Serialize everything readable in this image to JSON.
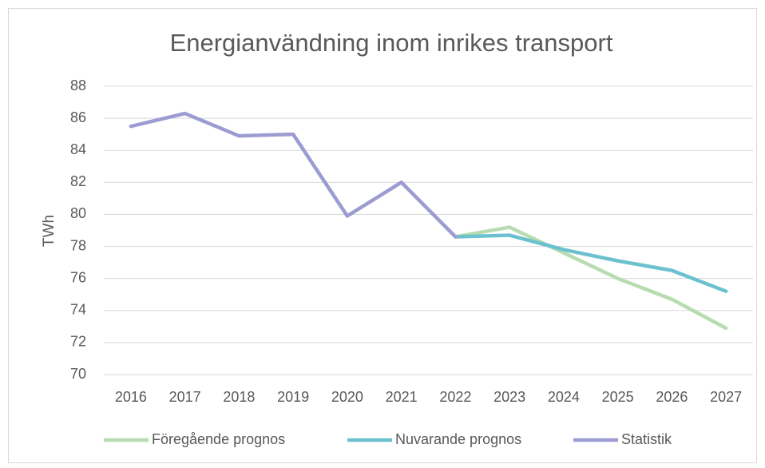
{
  "chart_data": {
    "type": "line",
    "title": "Energianvändning inom inrikes transport",
    "y_label": "TWh",
    "categories": [
      "2016",
      "2017",
      "2018",
      "2019",
      "2020",
      "2021",
      "2022",
      "2023",
      "2024",
      "2025",
      "2026",
      "2027"
    ],
    "series": [
      {
        "name": "Föregående prognos",
        "color": "#b6dcb0",
        "values": [
          null,
          null,
          null,
          null,
          null,
          null,
          78.6,
          79.2,
          77.6,
          76.0,
          74.7,
          72.9
        ]
      },
      {
        "name": "Nuvarande prognos",
        "color": "#6cc1cf",
        "values": [
          null,
          null,
          null,
          null,
          null,
          null,
          78.6,
          78.7,
          77.8,
          77.1,
          76.5,
          75.2
        ]
      },
      {
        "name": "Statistik",
        "color": "#9c9cd2",
        "values": [
          85.5,
          86.3,
          84.9,
          85.0,
          79.9,
          82.0,
          78.6,
          null,
          null,
          null,
          null,
          null
        ]
      }
    ],
    "ylim": [
      70,
      88
    ],
    "yticks": [
      70,
      72,
      74,
      76,
      78,
      80,
      82,
      84,
      86,
      88
    ],
    "grid": true,
    "legend": "bottom"
  }
}
